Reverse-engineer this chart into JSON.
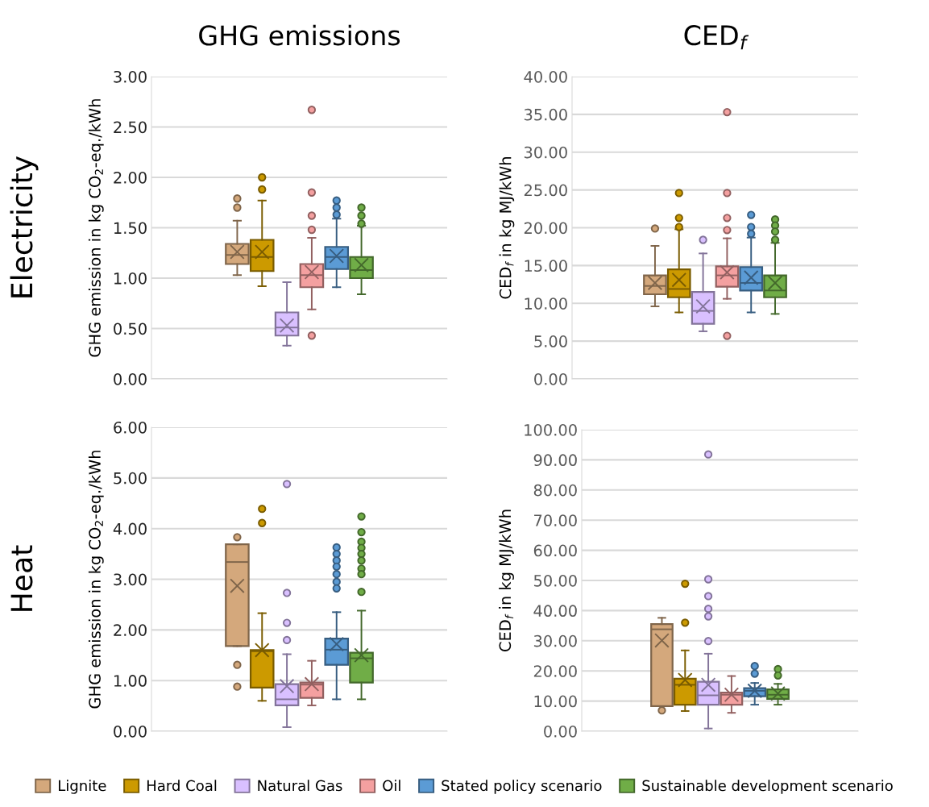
{
  "chart_data": [
    {
      "type": "box",
      "title": "GHG emissions",
      "ylabel": "GHG emission in kg CO$_{2}$-eq./kWh",
      "annotations": [
        "Electricity"
      ],
      "categories": [
        null
      ],
      "ylim": [
        0,
        3
      ],
      "yticks": [
        {
          "value": 0,
          "label": "0.00"
        },
        {
          "value": 0.5,
          "label": "0.50"
        },
        {
          "value": 1,
          "label": "1.00"
        },
        {
          "value": 1.5,
          "label": "1.50"
        },
        {
          "value": 2,
          "label": "2.00"
        },
        {
          "value": 2.5,
          "label": "2.50"
        },
        {
          "value": 3,
          "label": "3.00"
        }
      ],
      "grid": "y",
      "marker": "circle",
      "series": [
        {
          "color": "#d4a87c",
          "boxes": [
            {
              "low": 1.03,
              "q1": 1.14,
              "median": 1.23,
              "q3": 1.34,
              "high": 1.57,
              "mean": 1.26,
              "outliers": [
                1.79,
                1.7
              ]
            }
          ]
        },
        {
          "color": "#cc9a00",
          "boxes": [
            {
              "low": 0.92,
              "q1": 1.07,
              "median": 1.21,
              "q3": 1.38,
              "high": 1.77,
              "mean": 1.26,
              "outliers": [
                2.0,
                1.88
              ]
            }
          ]
        },
        {
          "color": "#d9c0ff",
          "boxes": [
            {
              "low": 0.33,
              "q1": 0.43,
              "median": 0.51,
              "q3": 0.66,
              "high": 0.96,
              "mean": 0.53
            }
          ]
        },
        {
          "color": "#f4a0a0",
          "boxes": [
            {
              "low": 0.69,
              "q1": 0.91,
              "median": 1.03,
              "q3": 1.14,
              "high": 1.4,
              "mean": 1.06,
              "outliers": [
                2.67,
                1.85,
                1.62,
                1.48,
                0.43
              ]
            }
          ]
        },
        {
          "color": "#5b9bd5",
          "boxes": [
            {
              "low": 0.91,
              "q1": 1.09,
              "median": 1.21,
              "q3": 1.31,
              "high": 1.59,
              "mean": 1.22,
              "outliers": [
                1.77,
                1.7,
                1.63
              ]
            }
          ]
        },
        {
          "color": "#70ad47",
          "boxes": [
            {
              "low": 0.84,
              "q1": 1.0,
              "median": 1.08,
              "q3": 1.21,
              "high": 1.52,
              "mean": 1.13,
              "outliers": [
                1.7,
                1.62,
                1.54
              ]
            }
          ]
        }
      ]
    },
    {
      "type": "box",
      "title": "CED$_{f}$",
      "ylabel": "CED$_{f}$ in kg MJ/kWh",
      "categories": [
        null
      ],
      "ylim": [
        0,
        40
      ],
      "yticks": [
        {
          "value": 0,
          "label": "0.00"
        },
        {
          "value": 5,
          "label": "5.00"
        },
        {
          "value": 10,
          "label": "10.00"
        },
        {
          "value": 15,
          "label": "15.00"
        },
        {
          "value": 20,
          "label": "20.00"
        },
        {
          "value": 25,
          "label": "25.00"
        },
        {
          "value": 30,
          "label": "30.00"
        },
        {
          "value": 35,
          "label": "35.00"
        },
        {
          "value": 40,
          "label": "40.00"
        }
      ],
      "grid": "y",
      "marker": "circle",
      "series": [
        {
          "color": "#d4a87c",
          "boxes": [
            {
              "low": 9.6,
              "q1": 11.2,
              "median": 12.3,
              "q3": 13.7,
              "high": 17.6,
              "mean": 12.7,
              "outliers": [
                19.9
              ]
            }
          ]
        },
        {
          "color": "#cc9a00",
          "boxes": [
            {
              "low": 8.8,
              "q1": 10.8,
              "median": 11.9,
              "q3": 14.5,
              "high": 19.8,
              "mean": 13.1,
              "outliers": [
                24.6,
                21.3,
                20.1
              ]
            }
          ]
        },
        {
          "color": "#d9c0ff",
          "boxes": [
            {
              "low": 6.3,
              "q1": 7.3,
              "median": 9.0,
              "q3": 11.5,
              "high": 16.6,
              "mean": 9.6,
              "outliers": [
                18.4
              ]
            }
          ]
        },
        {
          "color": "#f4a0a0",
          "boxes": [
            {
              "low": 10.6,
              "q1": 12.2,
              "median": 13.7,
              "q3": 14.9,
              "high": 18.6,
              "mean": 14.1,
              "outliers": [
                35.3,
                24.6,
                21.3,
                19.7,
                5.7
              ]
            }
          ]
        },
        {
          "color": "#5b9bd5",
          "boxes": [
            {
              "low": 8.8,
              "q1": 11.7,
              "median": 12.7,
              "q3": 14.8,
              "high": 18.7,
              "mean": 13.4,
              "outliers": [
                21.7,
                20.1,
                19.2
              ]
            }
          ]
        },
        {
          "color": "#70ad47",
          "boxes": [
            {
              "low": 8.6,
              "q1": 10.8,
              "median": 11.7,
              "q3": 13.7,
              "high": 18.0,
              "mean": 12.7,
              "outliers": [
                21.1,
                20.3,
                19.5,
                18.4
              ]
            }
          ]
        }
      ]
    },
    {
      "type": "box",
      "ylabel": "GHG emission in kg CO$_{2}$-eq./kWh",
      "annotations": [
        "Heat"
      ],
      "categories": [
        null
      ],
      "ylim": [
        0,
        6
      ],
      "yticks": [
        {
          "value": 0,
          "label": "0.00"
        },
        {
          "value": 1,
          "label": "1.00"
        },
        {
          "value": 2,
          "label": "2.00"
        },
        {
          "value": 3,
          "label": "3.00"
        },
        {
          "value": 4,
          "label": "4.00"
        },
        {
          "value": 5,
          "label": "5.00"
        },
        {
          "value": 6,
          "label": "6.00"
        }
      ],
      "grid": "y",
      "marker": "circle",
      "series": [
        {
          "color": "#d4a87c",
          "boxes": [
            {
              "low": 1.68,
              "q1": 1.68,
              "median": 3.34,
              "q3": 3.69,
              "high": 3.69,
              "mean": 2.87,
              "outliers": [
                3.83,
                1.31,
                0.88
              ]
            }
          ]
        },
        {
          "color": "#cc9a00",
          "boxes": [
            {
              "low": 0.6,
              "q1": 0.86,
              "median": 1.58,
              "q3": 1.6,
              "high": 2.33,
              "mean": 1.6,
              "outliers": [
                4.39,
                4.11
              ]
            }
          ]
        },
        {
          "color": "#d9c0ff",
          "boxes": [
            {
              "low": 0.08,
              "q1": 0.51,
              "median": 0.63,
              "q3": 0.93,
              "high": 1.52,
              "mean": 0.89,
              "outliers": [
                4.88,
                2.73,
                2.14,
                1.8
              ]
            }
          ]
        },
        {
          "color": "#f4a0a0",
          "boxes": [
            {
              "low": 0.51,
              "q1": 0.66,
              "median": 0.92,
              "q3": 0.96,
              "high": 1.39,
              "mean": 0.93
            }
          ]
        },
        {
          "color": "#5b9bd5",
          "boxes": [
            {
              "low": 0.63,
              "q1": 1.31,
              "median": 1.61,
              "q3": 1.83,
              "high": 2.35,
              "mean": 1.72,
              "outliers": [
                3.63,
                3.5,
                3.37,
                3.25,
                3.1,
                2.95,
                2.82
              ]
            }
          ]
        },
        {
          "color": "#70ad47",
          "boxes": [
            {
              "low": 0.63,
              "q1": 0.96,
              "median": 1.44,
              "q3": 1.55,
              "high": 2.38,
              "mean": 1.5,
              "outliers": [
                4.24,
                3.93,
                3.74,
                3.62,
                3.5,
                3.37,
                3.21,
                3.1,
                2.75
              ]
            }
          ]
        }
      ]
    },
    {
      "type": "box",
      "ylabel": "CED$_{f}$ in kg MJ/kWh",
      "categories": [
        null
      ],
      "ylim": [
        0,
        100
      ],
      "yticks": [
        {
          "value": 0,
          "label": "0.00"
        },
        {
          "value": 10,
          "label": "10.00"
        },
        {
          "value": 20,
          "label": "20.00"
        },
        {
          "value": 30,
          "label": "30.00"
        },
        {
          "value": 40,
          "label": "40.00"
        },
        {
          "value": 50,
          "label": "50.00"
        },
        {
          "value": 60,
          "label": "60.00"
        },
        {
          "value": 70,
          "label": "70.00"
        },
        {
          "value": 80,
          "label": "80.00"
        },
        {
          "value": 90,
          "label": "90.00"
        },
        {
          "value": 100,
          "label": "100.00"
        }
      ],
      "grid": "y",
      "marker": "circle",
      "legend": "bottom",
      "series": [
        {
          "name": "Lignite",
          "color": "#d4a87c",
          "boxes": [
            {
              "low": 8.3,
              "q1": 8.3,
              "median": 33.8,
              "q3": 35.5,
              "high": 37.6,
              "mean": 30.1,
              "outliers": [
                6.9
              ]
            }
          ]
        },
        {
          "name": "Hard Coal",
          "color": "#cc9a00",
          "boxes": [
            {
              "low": 6.7,
              "q1": 8.8,
              "median": 15.4,
              "q3": 17.4,
              "high": 26.8,
              "mean": 17.0,
              "outliers": [
                48.9,
                36.0
              ]
            }
          ]
        },
        {
          "name": "Natural Gas",
          "color": "#d9c0ff",
          "boxes": [
            {
              "low": 0.9,
              "q1": 8.8,
              "median": 11.9,
              "q3": 16.4,
              "high": 25.7,
              "mean": 15.4,
              "outliers": [
                91.8,
                50.4,
                44.8,
                40.6,
                38.1,
                29.9
              ]
            }
          ]
        },
        {
          "name": "Oil",
          "color": "#f4a0a0",
          "boxes": [
            {
              "low": 6.1,
              "q1": 8.8,
              "median": 12.1,
              "q3": 12.8,
              "high": 18.3,
              "mean": 12.1
            }
          ]
        },
        {
          "name": "Stated policy scenario",
          "color": "#5b9bd5",
          "boxes": [
            {
              "low": 8.8,
              "q1": 11.6,
              "median": 13.4,
              "q3": 14.3,
              "high": 16.0,
              "mean": 13.4,
              "outliers": [
                21.6,
                19.1
              ]
            }
          ]
        },
        {
          "name": "Sustainable development scenario",
          "color": "#70ad47",
          "boxes": [
            {
              "low": 8.8,
              "q1": 10.7,
              "median": 12.1,
              "q3": 13.9,
              "high": 15.7,
              "mean": 12.5,
              "outliers": [
                20.6,
                18.5
              ]
            }
          ]
        }
      ]
    }
  ]
}
